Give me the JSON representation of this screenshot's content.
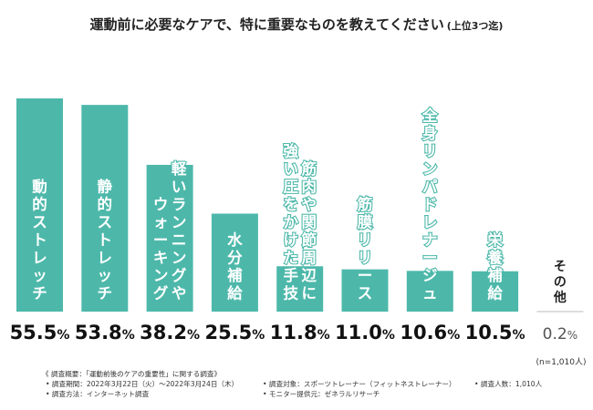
{
  "chart_data": {
    "type": "bar",
    "title": "運動前に必要なケアで、特に重要なものを教えてください",
    "title_note": "(上位3つ迄)",
    "categories": [
      "動的ストレッチ",
      "静的ストレッチ",
      "軽いランニングやウォーキング",
      "水分補給",
      "筋肉や関節周辺に強い圧をかけた手技",
      "筋膜リリース",
      "全身リンパドレナージュ",
      "栄養補給",
      "その他"
    ],
    "category_label_lines": [
      [
        "動的ストレッチ"
      ],
      [
        "静的ストレッチ"
      ],
      [
        "軽いランニングや",
        "ウォーキング"
      ],
      [
        "水分補給"
      ],
      [
        "筋肉や関節周辺に",
        "強い圧をかけた手技"
      ],
      [
        "筋膜リリース"
      ],
      [
        "全身リンパドレナージュ"
      ],
      [
        "栄養補給"
      ],
      [
        "その他"
      ]
    ],
    "values": [
      55.5,
      53.8,
      38.2,
      25.5,
      11.8,
      11.0,
      10.6,
      10.5,
      0.2
    ],
    "value_labels": [
      {
        "num": "55.5",
        "unit": "%"
      },
      {
        "num": "53.8",
        "unit": "%"
      },
      {
        "num": "38.2",
        "unit": "%"
      },
      {
        "num": "25.5",
        "unit": "%"
      },
      {
        "num": "11.8",
        "unit": "%"
      },
      {
        "num": "11.0",
        "unit": "%"
      },
      {
        "num": "10.6",
        "unit": "%"
      },
      {
        "num": "10.5",
        "unit": "%"
      },
      {
        "num": "0.2",
        "unit": "%"
      }
    ],
    "ylim": [
      0,
      60
    ],
    "xlabel": "",
    "ylabel": "",
    "grid": false,
    "bar_color": "#4db8aa",
    "other_color": "#555555",
    "sample_size": "(n=1,010人)"
  },
  "survey": {
    "overview": "《 調査概要：「運動前後のケアの重要性」に関する調査》",
    "period": "• 調査期間：2022年3月22日（火）～2022年3月24日（木）",
    "method": "• 調査方法：インターネット調査",
    "target": "• 調査対象：スポーツトレーナー（フィットネストレーナー）",
    "provider": "• モニター提供元：ゼネラルリサーチ",
    "count": "• 調査人数：1,010人"
  }
}
